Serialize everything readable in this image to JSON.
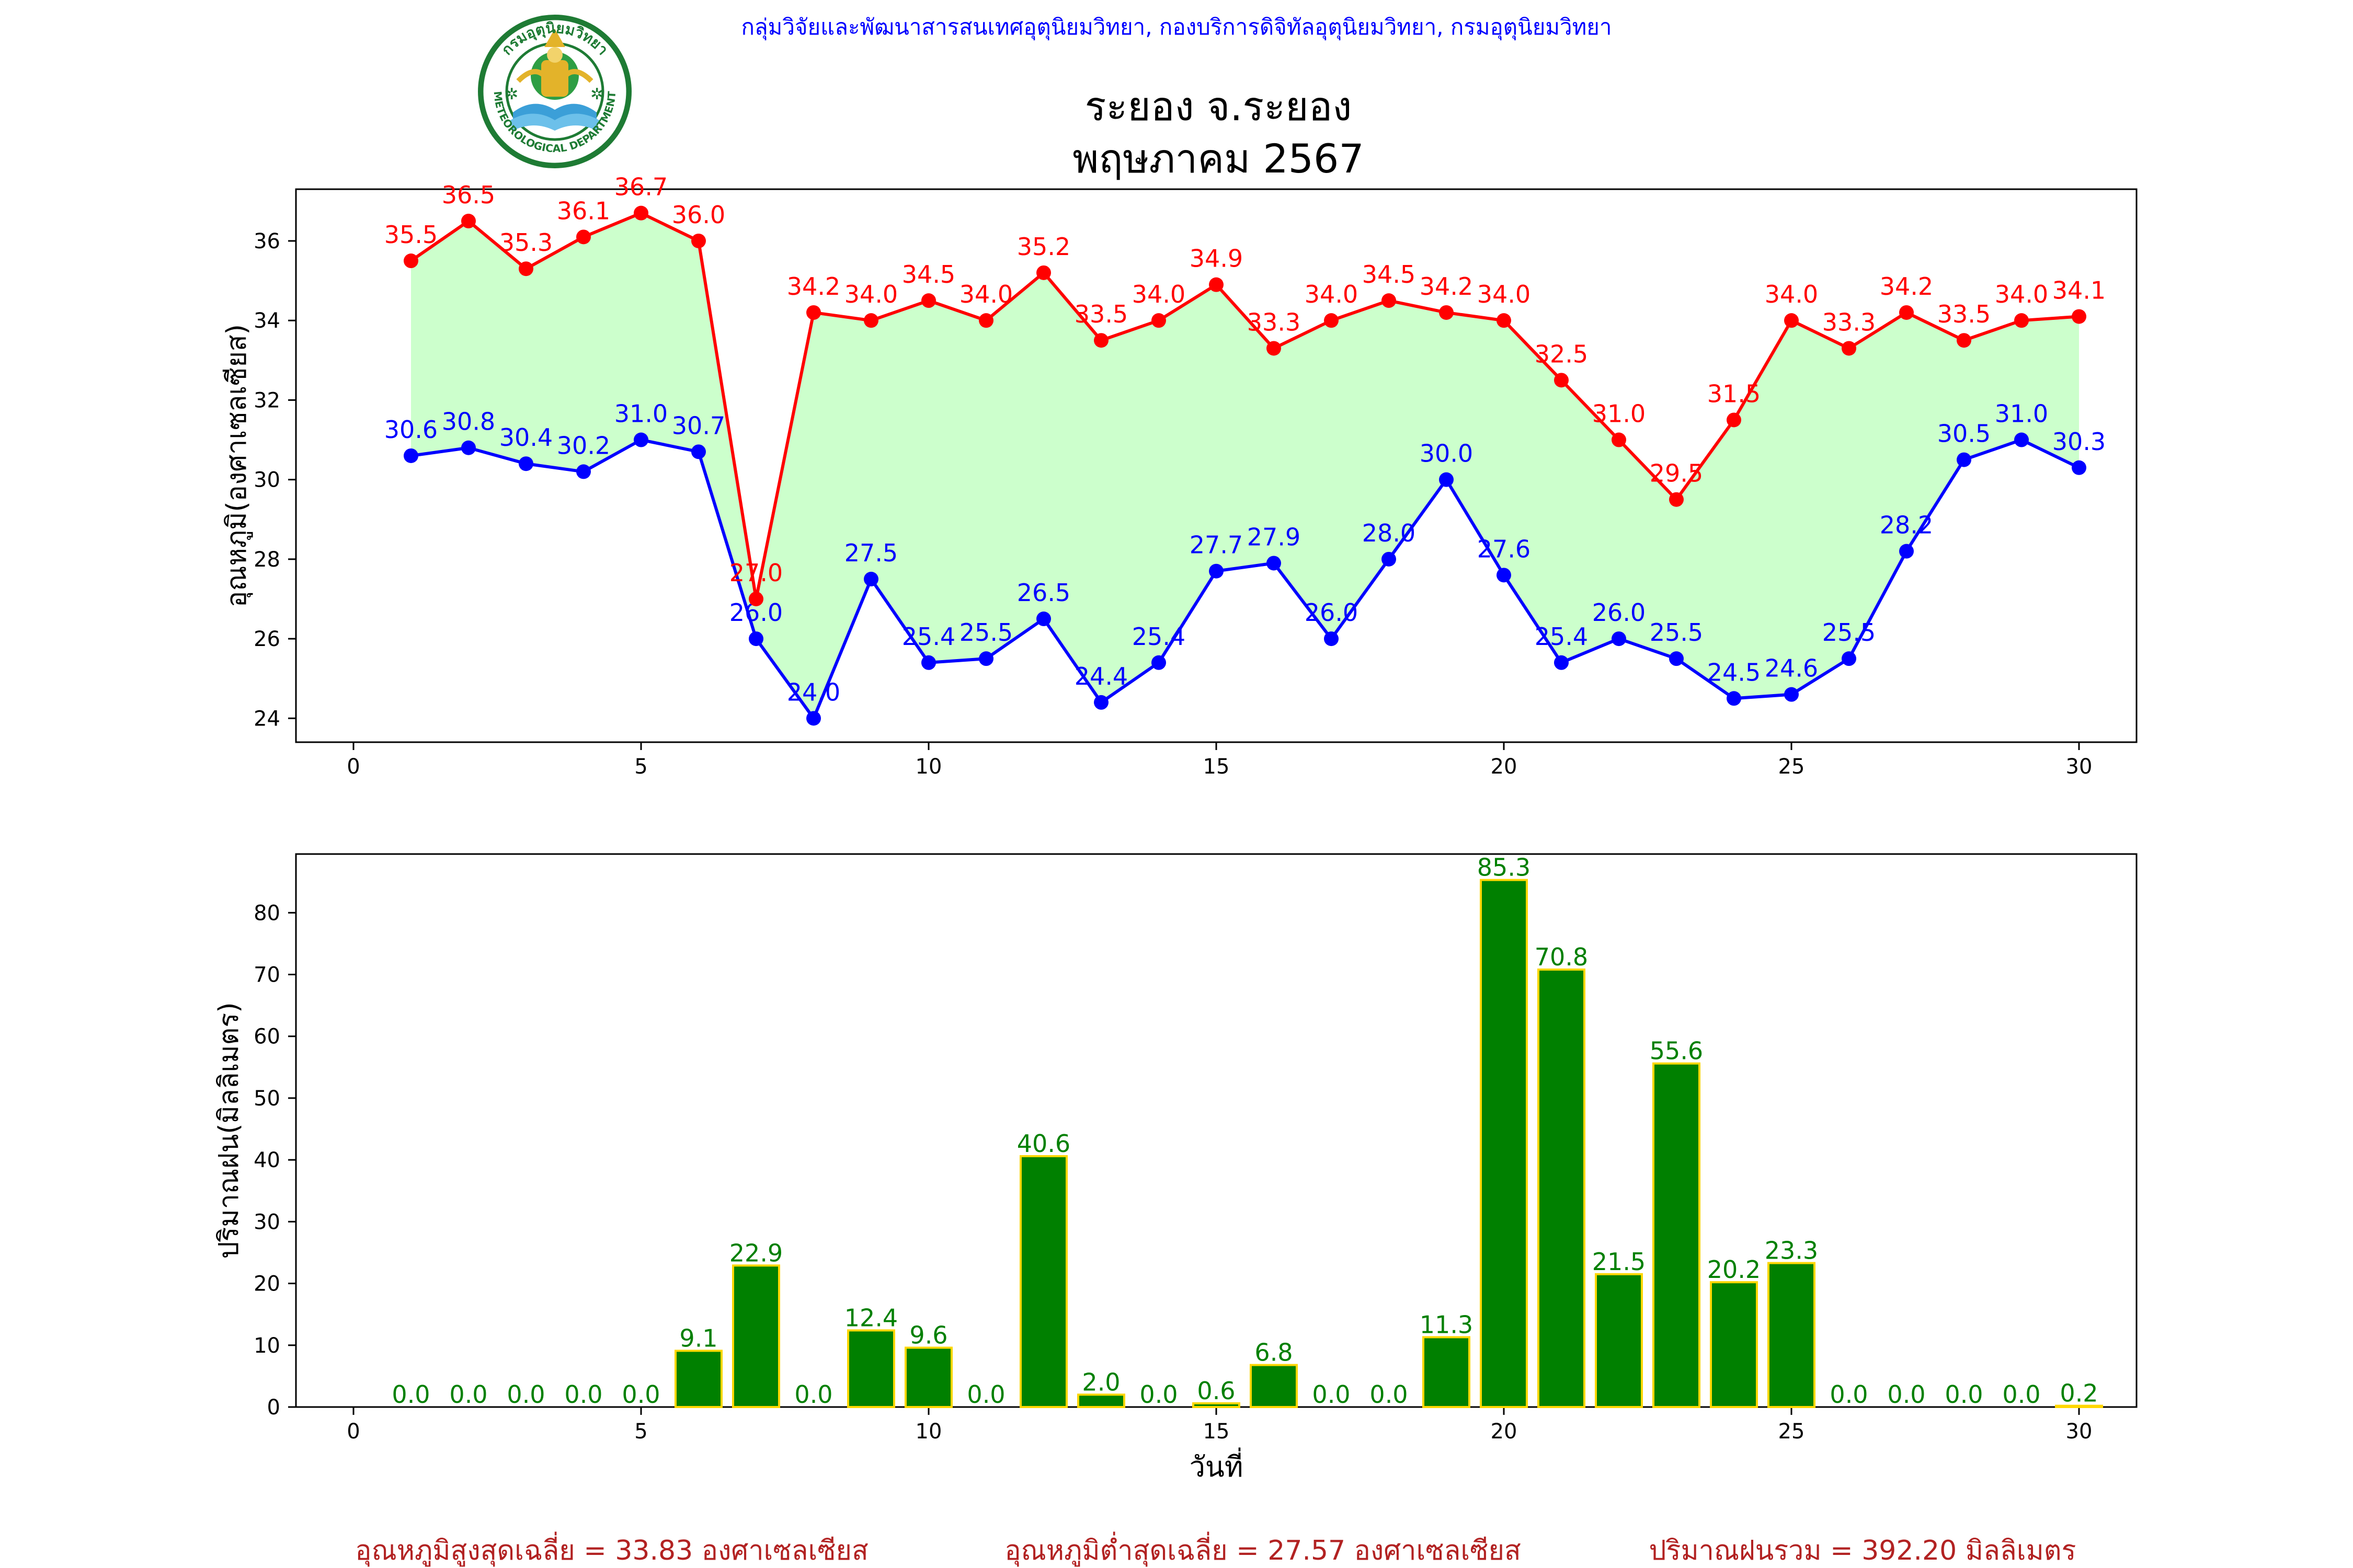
{
  "header": {
    "org": "กลุ่มวิจัยและพัฒนาสารสนเทศอุตุนิยมวิทยา, กองบริการดิจิทัลอุตุนิยมวิทยา, กรมอุตุนิยมวิทยา",
    "logo_text_top": "กรมอุตุนิยมวิทยา",
    "logo_text_bottom": "METEOROLOGICAL DEPARTMENT"
  },
  "title": {
    "line1": "ระยอง จ.ระยอง",
    "line2": "พฤษภาคม 2567"
  },
  "colors": {
    "max_temp": "#ff0000",
    "min_temp": "#0000ff",
    "fill_between": "#ccffcc",
    "rain_bar": "#008000",
    "rain_edge": "#ffd700",
    "rain_label": "#008000",
    "header": "#0000ff",
    "summary": "#b22222"
  },
  "chart_data": [
    {
      "type": "line",
      "ylabel": "อุณหภูมิ(องศาเซลเซียส)",
      "xlabel": "",
      "xlim": [
        -1,
        31
      ],
      "ylim": [
        23.4,
        37.3
      ],
      "xticks": [
        0,
        5,
        10,
        15,
        20,
        25,
        30
      ],
      "yticks": [
        24,
        26,
        28,
        30,
        32,
        34,
        36
      ],
      "grid": false,
      "x": [
        1,
        2,
        3,
        4,
        5,
        6,
        7,
        8,
        9,
        10,
        11,
        12,
        13,
        14,
        15,
        16,
        17,
        18,
        19,
        20,
        21,
        22,
        23,
        24,
        25,
        26,
        27,
        28,
        29,
        30
      ],
      "series": [
        {
          "key": "max",
          "values": [
            35.5,
            36.5,
            35.3,
            36.1,
            36.7,
            36.0,
            27.0,
            34.2,
            34.0,
            34.5,
            34.0,
            35.2,
            33.5,
            34.0,
            34.9,
            33.3,
            34.0,
            34.5,
            34.2,
            34.0,
            32.5,
            31.0,
            29.5,
            31.5,
            34.0,
            33.3,
            34.2,
            33.5,
            34.0,
            34.1
          ]
        },
        {
          "key": "min",
          "values": [
            30.6,
            30.8,
            30.4,
            30.2,
            31.0,
            30.7,
            26.0,
            24.0,
            27.5,
            25.4,
            25.5,
            26.5,
            24.4,
            25.4,
            27.7,
            27.9,
            26.0,
            28.0,
            30.0,
            27.6,
            25.4,
            26.0,
            25.5,
            24.5,
            24.6,
            25.5,
            28.2,
            30.5,
            31.0,
            30.3
          ]
        }
      ]
    },
    {
      "type": "bar",
      "ylabel": "ปริมาณฝน(มิลลิเมตร)",
      "xlabel": "วันที่",
      "xlim": [
        -1,
        31
      ],
      "ylim": [
        0,
        89.5
      ],
      "xticks": [
        0,
        5,
        10,
        15,
        20,
        25,
        30
      ],
      "yticks": [
        0,
        10,
        20,
        30,
        40,
        50,
        60,
        70,
        80
      ],
      "grid": false,
      "x": [
        1,
        2,
        3,
        4,
        5,
        6,
        7,
        8,
        9,
        10,
        11,
        12,
        13,
        14,
        15,
        16,
        17,
        18,
        19,
        20,
        21,
        22,
        23,
        24,
        25,
        26,
        27,
        28,
        29,
        30
      ],
      "values": [
        0.0,
        0.0,
        0.0,
        0.0,
        0.0,
        9.1,
        22.9,
        0.0,
        12.4,
        9.6,
        0.0,
        40.6,
        2.0,
        0.0,
        0.6,
        6.8,
        0.0,
        0.0,
        11.3,
        85.3,
        70.8,
        21.5,
        55.6,
        20.2,
        23.3,
        0.0,
        0.0,
        0.0,
        0.0,
        0.2
      ]
    }
  ],
  "summary": {
    "avg_max": "อุณหภูมิสูงสุดเฉลี่ย = 33.83 องศาเซลเซียส",
    "avg_min": "อุณหภูมิต่ำสุดเฉลี่ย = 27.57 องศาเซลเซียส",
    "total_rain": "ปริมาณฝนรวม = 392.20 มิลลิเมตร"
  }
}
